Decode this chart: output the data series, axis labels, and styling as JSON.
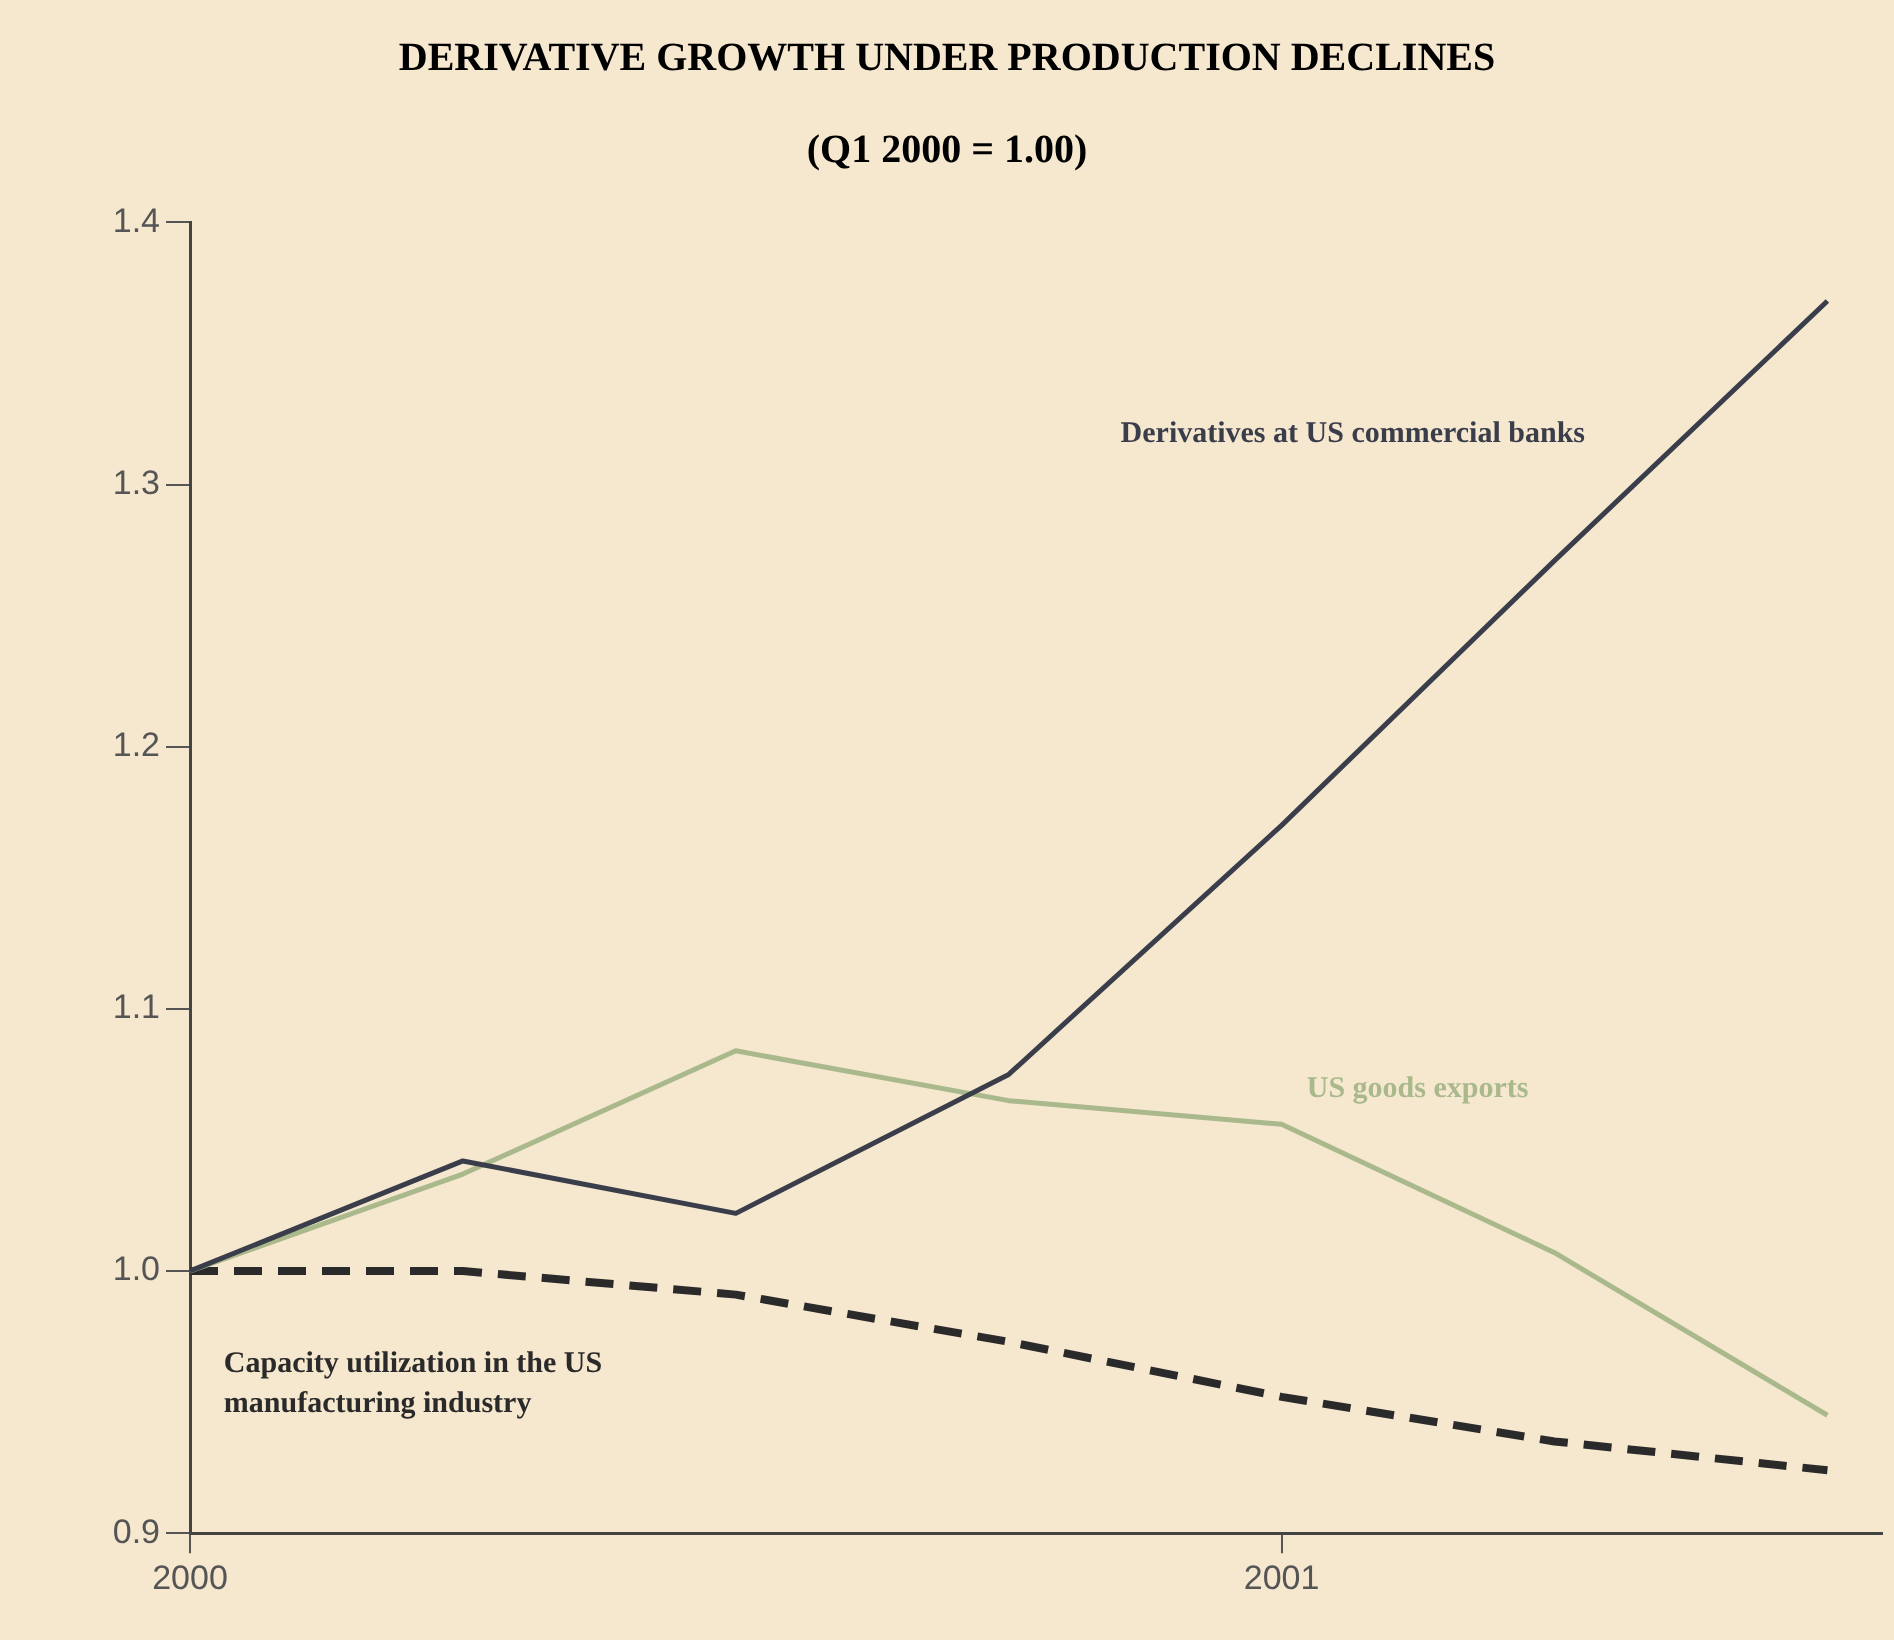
{
  "chart_data": {
    "type": "line",
    "title": "DERIVATIVE GROWTH UNDER PRODUCTION DECLINES",
    "subtitle": "(Q1 2000 = 1.00)",
    "x": [
      2000,
      2000.25,
      2000.5,
      2000.75,
      2001,
      2001.25,
      2001.5
    ],
    "series": [
      {
        "name": "Derivatives at US commercial banks",
        "color": "#3a3d4a",
        "values": [
          1.0,
          1.042,
          1.022,
          1.075,
          1.17,
          1.271,
          1.37
        ]
      },
      {
        "name": "US goods exports",
        "color": "#a9b98c",
        "values": [
          1.0,
          1.037,
          1.084,
          1.065,
          1.056,
          1.007,
          0.945
        ]
      },
      {
        "name": "Capacity utilization in the US manufacturing industry",
        "color": "#2a2a2a",
        "line_style": "dashed",
        "values": [
          1.0,
          1.0,
          0.991,
          0.973,
          0.952,
          0.935,
          0.924
        ]
      }
    ],
    "xlim": [
      2000,
      2001.55
    ],
    "xticks": [
      2000,
      2001
    ],
    "ylim": [
      0.9,
      1.4
    ],
    "yticks": [
      {
        "value": 0.9,
        "label": "0.9"
      },
      {
        "value": 1,
        "label": "1.0"
      },
      {
        "value": 1.1,
        "label": "1.1"
      },
      {
        "value": 1.2,
        "label": "1.2"
      },
      {
        "value": 1.3,
        "label": "1.3"
      },
      {
        "value": 1.4,
        "label": "1.4"
      }
    ],
    "grid": false,
    "legend": false,
    "marker": "none",
    "line_style": "solid"
  }
}
